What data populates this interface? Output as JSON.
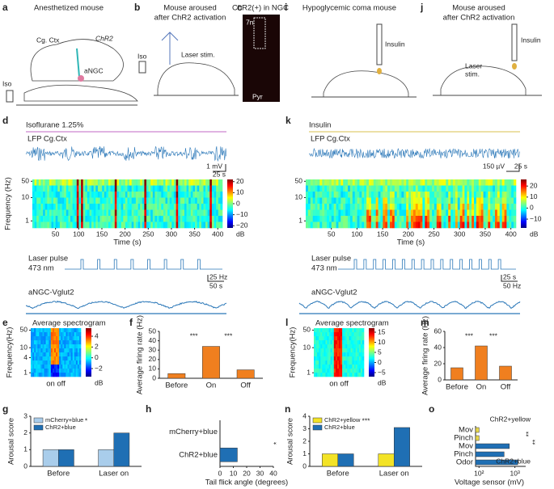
{
  "figure": {
    "a": {
      "label": "a",
      "title": "Anesthetized mouse",
      "cortex": "Cg. Ctx",
      "opsin": "ChR2",
      "anesthetic": "Iso",
      "nucleus": "aNGC"
    },
    "b": {
      "label": "b",
      "title": [
        "Mouse aroused",
        "after ChR2 activation"
      ],
      "anesthetic": "Iso",
      "stim": "Laser stim."
    },
    "c": {
      "label": "c",
      "title": "ChR2(+) in NGC",
      "nerve": "7n",
      "pyramid": "Pyr"
    },
    "i": {
      "label": "i",
      "title": "Hypoglycemic coma mouse",
      "drug": "Insulin"
    },
    "j": {
      "label": "j",
      "title": [
        "Mouse aroused",
        "after ChR2 activation"
      ],
      "drug": "Insulin",
      "stim": [
        "Laser",
        "stim."
      ]
    }
  },
  "recordings": [
    {
      "label": "d",
      "condition": "Isoflurane 1.25%",
      "condition_color": "#d69ad9",
      "lfp": "LFP Cg.Ctx",
      "lfp_scale": [
        "1 mV",
        "25 s"
      ],
      "spectrogram": {
        "ylabel": "Frequency (Hz)",
        "xlabel": "Time (s)",
        "xlim": [
          0,
          410
        ],
        "xticks": [
          50,
          100,
          150,
          200,
          250,
          300,
          350,
          400
        ],
        "ylim": [
          0.5,
          60
        ],
        "yticks": [
          50,
          10,
          1
        ],
        "log": true,
        "colorbar": {
          "label": "dB",
          "lim": [
            -22,
            22
          ],
          "ticks": [
            20,
            10,
            0,
            {
              "value": -10,
              "label": "−10"
            },
            {
              "value": -20,
              "label": "−20"
            }
          ]
        }
      },
      "laser": [
        "Laser pulse",
        "473 nm"
      ],
      "laser_scale": [
        "25 Hz",
        "50 s"
      ],
      "trace": "aNGC-Vglut2"
    },
    {
      "label": "k",
      "condition": "Insulin",
      "condition_color": "#e6d68a",
      "lfp": "LFP Cg.Ctx",
      "lfp_scale": [
        "150 µV",
        "25 s"
      ],
      "spectrogram": {
        "xlabel": "Time (s)",
        "xlim": [
          0,
          410
        ],
        "xticks": [
          50,
          100,
          150,
          200,
          250,
          300,
          350,
          400
        ],
        "ylim": [
          0.5,
          60
        ],
        "yticks": [
          50,
          10,
          1
        ],
        "log": true,
        "colorbar": {
          "label": "dB",
          "lim": [
            -18,
            26
          ],
          "ticks": [
            20,
            10,
            0,
            {
              "value": -10,
              "label": "−10"
            }
          ]
        }
      },
      "laser": [
        "Laser pulse",
        "473 nm"
      ],
      "laser_scale": [
        "25 s",
        "50 Hz"
      ],
      "trace": "aNGC-Vglut2"
    }
  ],
  "averages": [
    {
      "label": "e",
      "title": "Average spectrogram",
      "ylabel": "Frequency(Hz)",
      "xlabel": "on off",
      "ylim": [
        0.7,
        60
      ],
      "yticks": [
        50,
        10,
        4,
        1
      ],
      "log": true,
      "colorbar": {
        "label": "dB",
        "lim": [
          -3.5,
          5.5
        ],
        "ticks": [
          4,
          2,
          0,
          {
            "value": -2,
            "label": "−2"
          }
        ]
      }
    },
    {
      "label": "l",
      "title": "Average spectrogram",
      "ylabel": "Frequency(Hz)",
      "xlabel": "on off",
      "ylim": [
        0.7,
        60
      ],
      "yticks": [
        50,
        10,
        1
      ],
      "log": true,
      "colorbar": {
        "label": "dB",
        "lim": [
          -7,
          17
        ],
        "ticks": [
          15,
          10,
          5,
          0,
          {
            "value": -5,
            "label": "−5"
          }
        ]
      }
    }
  ],
  "chart_data": [
    {
      "panel": "f",
      "type": "bar",
      "ylabel": "Average firing rate (Hz)",
      "categories": [
        "Before",
        "On",
        "Off"
      ],
      "values": [
        5,
        34,
        9
      ],
      "color": "#f07f1f",
      "ylim": [
        0,
        50
      ],
      "yticks": [
        0,
        10,
        20,
        30,
        40,
        50
      ],
      "annotations": [
        "***",
        "***"
      ]
    },
    {
      "panel": "m",
      "type": "bar",
      "ylabel": "Average firing rate (Hz)",
      "categories": [
        "Before",
        "On",
        "Off"
      ],
      "values": [
        15,
        42,
        17
      ],
      "color": "#f07f1f",
      "ylim": [
        0,
        60
      ],
      "yticks": [
        0,
        20,
        40,
        60
      ],
      "annotations": [
        "***",
        "***"
      ]
    },
    {
      "panel": "g",
      "type": "grouped_bar",
      "ylabel": "Arousal score",
      "categories": [
        "Before",
        "Laser on"
      ],
      "series": [
        {
          "name": "mCherry+blue",
          "color": "#a9cdeb",
          "values": [
            1,
            1
          ]
        },
        {
          "name": "ChR2+blue",
          "color": "#1f6fb4",
          "values": [
            1,
            2
          ]
        }
      ],
      "ylim": [
        0,
        3
      ],
      "yticks": [
        0,
        1,
        2,
        3
      ],
      "annotations": [
        "*"
      ]
    },
    {
      "panel": "h",
      "type": "hbar",
      "xlabel": "Tail flick angle (degrees)",
      "categories": [
        "mCherry+blue",
        "ChR2+blue"
      ],
      "values": [
        0,
        13
      ],
      "color": "#1f6fb4",
      "xlim": [
        0,
        40
      ],
      "xticks": [
        0,
        10,
        20,
        30,
        40
      ],
      "annotations": [
        "*"
      ]
    },
    {
      "panel": "n",
      "type": "grouped_bar",
      "ylabel": "Arousal score",
      "categories": [
        "Before",
        "Laser on"
      ],
      "series": [
        {
          "name": "ChR2+yellow",
          "color": "#f3e326",
          "values": [
            1,
            1
          ]
        },
        {
          "name": "ChR2+blue",
          "color": "#1f6fb4",
          "values": [
            1,
            3.1
          ]
        }
      ],
      "ylim": [
        0,
        4
      ],
      "yticks": [
        0,
        1,
        2,
        3,
        4
      ],
      "annotations": [
        "***"
      ]
    },
    {
      "panel": "o",
      "type": "hbar",
      "log": true,
      "xlabel": "Voltage sensor (mV)",
      "series": [
        {
          "name": "ChR2+yellow",
          "color": "#e6d64a",
          "categories": [
            "Mov",
            "Pinch"
          ],
          "values": [
            100,
            100
          ]
        },
        {
          "name": "ChR2+blue",
          "color": "#1f6fb4",
          "categories": [
            "Mov",
            "Pinch",
            "Odor"
          ],
          "values": [
            700,
            500,
            1200
          ]
        }
      ],
      "xlim": [
        80,
        2000
      ],
      "xticks": [
        {
          "value": 100,
          "label": "10²"
        },
        {
          "value": 1000,
          "label": "10³"
        }
      ],
      "annotations": [
        "**",
        "**"
      ]
    }
  ]
}
